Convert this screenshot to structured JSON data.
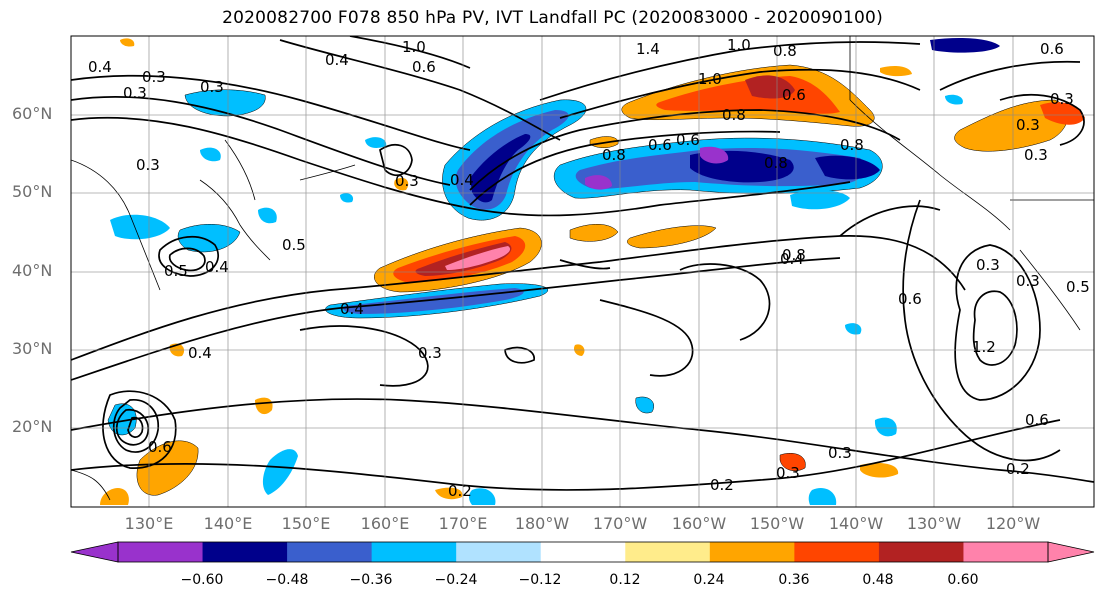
{
  "title": "2020082700 F078 850 hPa PV, IVT Landfall PC (2020083000 - 2020090100)",
  "lat_labels": [
    "60°N",
    "50°N",
    "40°N",
    "30°N",
    "20°N"
  ],
  "lon_labels": [
    "130°E",
    "140°E",
    "150°E",
    "160°E",
    "170°E",
    "180°W",
    "170°W",
    "160°W",
    "150°W",
    "140°W",
    "130°W",
    "120°W"
  ],
  "colorbar": {
    "ticks": [
      "−0.60",
      "−0.48",
      "−0.36",
      "−0.24",
      "−0.12",
      "0.12",
      "0.24",
      "0.36",
      "0.48",
      "0.60"
    ],
    "colors": [
      "#9932cc",
      "#00008b",
      "#3a5fcd",
      "#00bfff",
      "#b0e2ff",
      "#ffffff",
      "#ffec8b",
      "#ffa500",
      "#ff4500",
      "#b22222",
      "#ff82ab"
    ]
  },
  "contour_labels": [
    "0.4",
    "0.3",
    "0.3",
    "0.3",
    "0.4",
    "1.0",
    "0.6",
    "1.4",
    "1.0",
    "0.8",
    "0.6",
    "0.3",
    "0.8",
    "0.6",
    "0.5",
    "0.4",
    "0.3",
    "0.4",
    "0.3",
    "0.4",
    "0.6",
    "0.8",
    "1.2",
    "0.3",
    "0.4",
    "0.3",
    "0.6",
    "0.2",
    "0.2",
    "0.3",
    "0.3",
    "0.2",
    "0.3",
    "0.6",
    "0.6",
    "0.3",
    "0.6",
    "0.8",
    "0.8",
    "1.0",
    "0.5",
    "0.3",
    "0.5",
    "0.4",
    "0.8"
  ]
}
